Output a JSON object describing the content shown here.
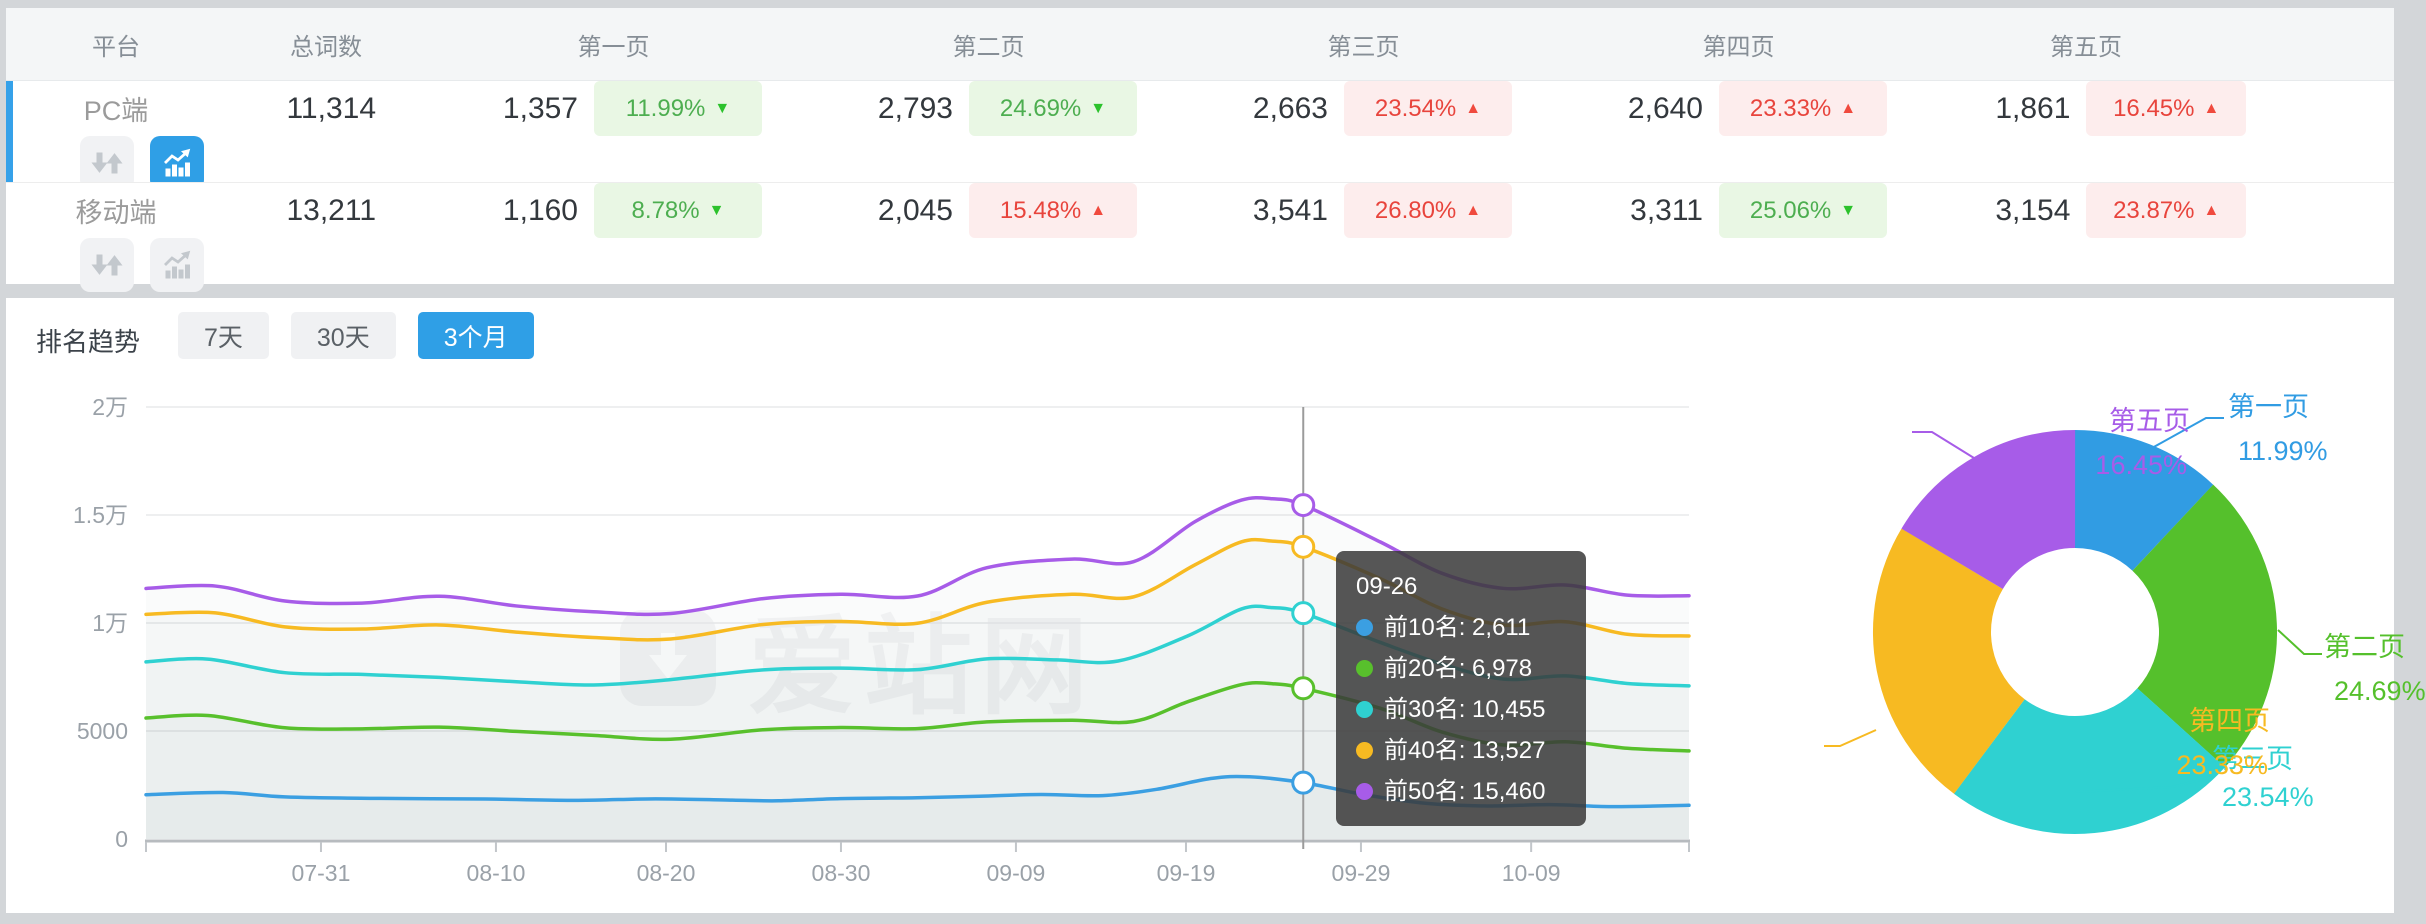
{
  "accent_color": "#2f9fe6",
  "watermark": "爱站网",
  "table": {
    "headers": [
      "平台",
      "总词数",
      "第一页",
      "第二页",
      "第三页",
      "第四页",
      "第五页"
    ],
    "rows": [
      {
        "platform": "PC端",
        "total": "11,314",
        "selected": true,
        "chart_active": true,
        "pages": [
          {
            "count": "1,357",
            "pct": "11.99%",
            "dir": "down"
          },
          {
            "count": "2,793",
            "pct": "24.69%",
            "dir": "down"
          },
          {
            "count": "2,663",
            "pct": "23.54%",
            "dir": "up"
          },
          {
            "count": "2,640",
            "pct": "23.33%",
            "dir": "up"
          },
          {
            "count": "1,861",
            "pct": "16.45%",
            "dir": "up"
          }
        ]
      },
      {
        "platform": "移动端",
        "total": "13,211",
        "selected": false,
        "chart_active": false,
        "pages": [
          {
            "count": "1,160",
            "pct": "8.78%",
            "dir": "down"
          },
          {
            "count": "2,045",
            "pct": "15.48%",
            "dir": "up"
          },
          {
            "count": "3,541",
            "pct": "26.80%",
            "dir": "up"
          },
          {
            "count": "3,311",
            "pct": "25.06%",
            "dir": "down"
          },
          {
            "count": "3,154",
            "pct": "23.87%",
            "dir": "up"
          }
        ]
      }
    ]
  },
  "trend": {
    "title": "排名趋势",
    "tabs": [
      {
        "label": "7天",
        "active": false
      },
      {
        "label": "30天",
        "active": false
      },
      {
        "label": "3个月",
        "active": true
      }
    ]
  },
  "chart_data": [
    {
      "type": "line",
      "title": "排名趋势",
      "grid": true,
      "legend_position": "none",
      "ylim": [
        0,
        20000
      ],
      "y_ticks": [
        {
          "label": "0",
          "v": 0
        },
        {
          "label": "5000",
          "v": 5000
        },
        {
          "label": "1万",
          "v": 10000
        },
        {
          "label": "1.5万",
          "v": 15000
        },
        {
          "label": "2万",
          "v": 20000
        }
      ],
      "x_ticks": [
        {
          "label": "07-31",
          "f": 0.1134
        },
        {
          "label": "08-10",
          "f": 0.2268
        },
        {
          "label": "08-20",
          "f": 0.337
        },
        {
          "label": "08-30",
          "f": 0.4504
        },
        {
          "label": "09-09",
          "f": 0.5638
        },
        {
          "label": "09-19",
          "f": 0.674
        },
        {
          "label": "09-29",
          "f": 0.7874
        },
        {
          "label": "10-09",
          "f": 0.8977
        }
      ],
      "series": [
        {
          "name": "前10名",
          "color": "#3b9fe2",
          "points": [
            [
              0,
              2050
            ],
            [
              0.05,
              2150
            ],
            [
              0.09,
              1950
            ],
            [
              0.15,
              1880
            ],
            [
              0.22,
              1850
            ],
            [
              0.28,
              1790
            ],
            [
              0.33,
              1860
            ],
            [
              0.38,
              1800
            ],
            [
              0.41,
              1770
            ],
            [
              0.45,
              1870
            ],
            [
              0.5,
              1910
            ],
            [
              0.54,
              1980
            ],
            [
              0.58,
              2060
            ],
            [
              0.62,
              2010
            ],
            [
              0.655,
              2300
            ],
            [
              0.69,
              2800
            ],
            [
              0.715,
              2880
            ],
            [
              0.75,
              2611
            ],
            [
              0.79,
              2050
            ],
            [
              0.83,
              1650
            ],
            [
              0.87,
              1530
            ],
            [
              0.91,
              1590
            ],
            [
              0.95,
              1500
            ],
            [
              1,
              1560
            ]
          ]
        },
        {
          "name": "前20名",
          "color": "#58c02c",
          "points": [
            [
              0,
              5600
            ],
            [
              0.04,
              5720
            ],
            [
              0.09,
              5150
            ],
            [
              0.14,
              5100
            ],
            [
              0.19,
              5180
            ],
            [
              0.24,
              4980
            ],
            [
              0.29,
              4800
            ],
            [
              0.34,
              4620
            ],
            [
              0.4,
              5060
            ],
            [
              0.45,
              5160
            ],
            [
              0.5,
              5110
            ],
            [
              0.545,
              5420
            ],
            [
              0.6,
              5500
            ],
            [
              0.64,
              5440
            ],
            [
              0.675,
              6350
            ],
            [
              0.71,
              7150
            ],
            [
              0.73,
              7190
            ],
            [
              0.75,
              6978
            ],
            [
              0.8,
              6050
            ],
            [
              0.84,
              4950
            ],
            [
              0.88,
              4350
            ],
            [
              0.92,
              4500
            ],
            [
              0.96,
              4200
            ],
            [
              1,
              4080
            ]
          ]
        },
        {
          "name": "前30名",
          "color": "#2fd1d1",
          "points": [
            [
              0,
              8200
            ],
            [
              0.04,
              8330
            ],
            [
              0.09,
              7700
            ],
            [
              0.14,
              7620
            ],
            [
              0.19,
              7480
            ],
            [
              0.24,
              7280
            ],
            [
              0.29,
              7130
            ],
            [
              0.34,
              7380
            ],
            [
              0.4,
              7830
            ],
            [
              0.45,
              7910
            ],
            [
              0.5,
              7840
            ],
            [
              0.545,
              8340
            ],
            [
              0.59,
              8290
            ],
            [
              0.63,
              8240
            ],
            [
              0.675,
              9400
            ],
            [
              0.71,
              10650
            ],
            [
              0.73,
              10710
            ],
            [
              0.75,
              10455
            ],
            [
              0.8,
              9100
            ],
            [
              0.84,
              8100
            ],
            [
              0.88,
              7400
            ],
            [
              0.92,
              7550
            ],
            [
              0.96,
              7200
            ],
            [
              1,
              7090
            ]
          ]
        },
        {
          "name": "前40名",
          "color": "#f7ba22",
          "points": [
            [
              0,
              10400
            ],
            [
              0.045,
              10470
            ],
            [
              0.09,
              9820
            ],
            [
              0.14,
              9720
            ],
            [
              0.19,
              9910
            ],
            [
              0.24,
              9580
            ],
            [
              0.29,
              9330
            ],
            [
              0.34,
              9260
            ],
            [
              0.4,
              9930
            ],
            [
              0.45,
              10070
            ],
            [
              0.5,
              9990
            ],
            [
              0.545,
              10960
            ],
            [
              0.6,
              11330
            ],
            [
              0.64,
              11210
            ],
            [
              0.68,
              12700
            ],
            [
              0.71,
              13760
            ],
            [
              0.73,
              13790
            ],
            [
              0.75,
              13527
            ],
            [
              0.8,
              12050
            ],
            [
              0.84,
              10650
            ],
            [
              0.88,
              9900
            ],
            [
              0.92,
              10060
            ],
            [
              0.96,
              9480
            ],
            [
              1,
              9400
            ]
          ]
        },
        {
          "name": "前50名",
          "color": "#a75ce8",
          "points": [
            [
              0,
              11600
            ],
            [
              0.045,
              11710
            ],
            [
              0.09,
              11020
            ],
            [
              0.14,
              10920
            ],
            [
              0.19,
              11240
            ],
            [
              0.24,
              10790
            ],
            [
              0.29,
              10520
            ],
            [
              0.34,
              10440
            ],
            [
              0.4,
              11130
            ],
            [
              0.45,
              11330
            ],
            [
              0.5,
              11250
            ],
            [
              0.545,
              12560
            ],
            [
              0.6,
              12960
            ],
            [
              0.64,
              12840
            ],
            [
              0.68,
              14700
            ],
            [
              0.71,
              15690
            ],
            [
              0.73,
              15750
            ],
            [
              0.75,
              15460
            ],
            [
              0.8,
              13750
            ],
            [
              0.84,
              12300
            ],
            [
              0.88,
              11600
            ],
            [
              0.92,
              11760
            ],
            [
              0.96,
              11290
            ],
            [
              1,
              11260
            ]
          ]
        }
      ],
      "crosshair": {
        "date": "09-26",
        "f": 0.75
      },
      "tooltip": {
        "date": "09-26",
        "items": [
          {
            "name": "前10名",
            "value": "2,611",
            "v": 2611,
            "color": "#3b9fe2"
          },
          {
            "name": "前20名",
            "value": "6,978",
            "v": 6978,
            "color": "#58c02c"
          },
          {
            "name": "前30名",
            "value": "10,455",
            "v": 10455,
            "color": "#2fd1d1"
          },
          {
            "name": "前40名",
            "value": "13,527",
            "v": 13527,
            "color": "#f7ba22"
          },
          {
            "name": "前50名",
            "value": "15,460",
            "v": 15460,
            "color": "#a75ce8"
          }
        ]
      }
    },
    {
      "type": "pie",
      "donut": true,
      "slices": [
        {
          "label": "第一页",
          "pct": 11.99,
          "pct_label": "11.99%",
          "color": "#319ce3"
        },
        {
          "label": "第二页",
          "pct": 24.69,
          "pct_label": "24.69%",
          "color": "#55c02c"
        },
        {
          "label": "第三页",
          "pct": 23.54,
          "pct_label": "23.54%",
          "color": "#2fd1d1"
        },
        {
          "label": "第四页",
          "pct": 23.33,
          "pct_label": "23.33%",
          "color": "#f7ba22"
        },
        {
          "label": "第五页",
          "pct": 16.45,
          "pct_label": "16.45%",
          "color": "#a75ce8"
        }
      ]
    }
  ]
}
